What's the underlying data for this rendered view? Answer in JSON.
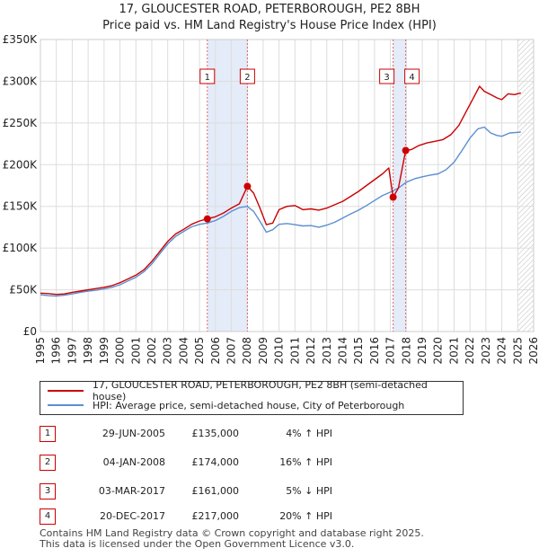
{
  "title_line1": "17, GLOUCESTER ROAD, PETERBOROUGH, PE2 8BH",
  "title_line2": "Price paid vs. HM Land Registry's House Price Index (HPI)",
  "chart_data": {
    "type": "line",
    "title": "17, GLOUCESTER ROAD, PETERBOROUGH, PE2 8BH",
    "subtitle": "Price paid vs. HM Land Registry's House Price Index (HPI)",
    "xlim": [
      1995,
      2026
    ],
    "ylim": [
      0,
      350000
    ],
    "x_ticks": [
      1995,
      1996,
      1997,
      1998,
      1999,
      2000,
      2001,
      2002,
      2003,
      2004,
      2005,
      2006,
      2007,
      2008,
      2009,
      2010,
      2011,
      2012,
      2013,
      2014,
      2015,
      2016,
      2017,
      2018,
      2019,
      2020,
      2021,
      2022,
      2023,
      2024,
      2025,
      2026
    ],
    "y_ticks": [
      0,
      50000,
      100000,
      150000,
      200000,
      250000,
      300000,
      350000
    ],
    "y_tick_labels": [
      "£0",
      "£50K",
      "£100K",
      "£150K",
      "£200K",
      "£250K",
      "£300K",
      "£350K"
    ],
    "grid": true,
    "legend_position": "below",
    "forecast_hatch_from": 2025.0,
    "series": [
      {
        "name": "17, GLOUCESTER ROAD, PETERBOROUGH, PE2 8BH (semi-detached house)",
        "color": "#cc0000",
        "points": [
          [
            1995.0,
            46000
          ],
          [
            1995.5,
            45500
          ],
          [
            1996.0,
            44500
          ],
          [
            1996.5,
            45000
          ],
          [
            1997.0,
            47000
          ],
          [
            1997.5,
            48500
          ],
          [
            1998.0,
            50000
          ],
          [
            1998.5,
            51500
          ],
          [
            1999.0,
            53000
          ],
          [
            1999.5,
            55000
          ],
          [
            2000.0,
            58500
          ],
          [
            2000.5,
            63000
          ],
          [
            2001.0,
            67500
          ],
          [
            2001.5,
            74000
          ],
          [
            2002.0,
            84000
          ],
          [
            2002.5,
            96000
          ],
          [
            2003.0,
            108000
          ],
          [
            2003.5,
            117000
          ],
          [
            2004.0,
            122500
          ],
          [
            2004.5,
            128500
          ],
          [
            2005.0,
            132500
          ],
          [
            2005.49,
            135000
          ],
          [
            2006.0,
            137500
          ],
          [
            2006.5,
            142000
          ],
          [
            2007.0,
            148000
          ],
          [
            2007.5,
            153000
          ],
          [
            2008.01,
            174000
          ],
          [
            2008.4,
            166000
          ],
          [
            2008.8,
            148000
          ],
          [
            2009.2,
            128000
          ],
          [
            2009.6,
            130000
          ],
          [
            2010.0,
            146000
          ],
          [
            2010.5,
            150000
          ],
          [
            2011.0,
            151000
          ],
          [
            2011.5,
            146000
          ],
          [
            2012.0,
            147000
          ],
          [
            2012.5,
            145500
          ],
          [
            2013.0,
            148000
          ],
          [
            2013.5,
            152000
          ],
          [
            2014.0,
            156000
          ],
          [
            2014.5,
            162000
          ],
          [
            2015.0,
            168000
          ],
          [
            2015.5,
            175000
          ],
          [
            2016.0,
            182000
          ],
          [
            2016.5,
            189000
          ],
          [
            2016.9,
            196000
          ],
          [
            2017.17,
            161000
          ],
          [
            2017.5,
            172000
          ],
          [
            2017.96,
            217000
          ],
          [
            2018.3,
            218000
          ],
          [
            2018.8,
            223000
          ],
          [
            2019.3,
            226000
          ],
          [
            2019.8,
            228000
          ],
          [
            2020.3,
            230000
          ],
          [
            2020.8,
            236000
          ],
          [
            2021.3,
            247000
          ],
          [
            2021.8,
            265000
          ],
          [
            2022.3,
            283000
          ],
          [
            2022.6,
            294000
          ],
          [
            2022.9,
            288000
          ],
          [
            2023.3,
            284000
          ],
          [
            2023.7,
            280000
          ],
          [
            2024.0,
            278000
          ],
          [
            2024.4,
            285000
          ],
          [
            2024.8,
            284000
          ],
          [
            2025.2,
            286000
          ]
        ]
      },
      {
        "name": "HPI: Average price, semi-detached house, City of Peterborough",
        "color": "#5b8fd0",
        "points": [
          [
            1995.0,
            44000
          ],
          [
            1995.5,
            43000
          ],
          [
            1996.0,
            42500
          ],
          [
            1996.5,
            43500
          ],
          [
            1997.0,
            45000
          ],
          [
            1997.5,
            47000
          ],
          [
            1998.0,
            48500
          ],
          [
            1998.5,
            49500
          ],
          [
            1999.0,
            51000
          ],
          [
            1999.5,
            53000
          ],
          [
            2000.0,
            56000
          ],
          [
            2000.5,
            60500
          ],
          [
            2001.0,
            65000
          ],
          [
            2001.5,
            71500
          ],
          [
            2002.0,
            81000
          ],
          [
            2002.5,
            93000
          ],
          [
            2003.0,
            105000
          ],
          [
            2003.5,
            114000
          ],
          [
            2004.0,
            120000
          ],
          [
            2004.5,
            125500
          ],
          [
            2005.0,
            128500
          ],
          [
            2005.49,
            130000
          ],
          [
            2006.0,
            133000
          ],
          [
            2006.5,
            138000
          ],
          [
            2007.0,
            144000
          ],
          [
            2007.5,
            148500
          ],
          [
            2008.0,
            150000
          ],
          [
            2008.4,
            144000
          ],
          [
            2008.8,
            132000
          ],
          [
            2009.2,
            119000
          ],
          [
            2009.6,
            122000
          ],
          [
            2010.0,
            128500
          ],
          [
            2010.5,
            129500
          ],
          [
            2011.0,
            128000
          ],
          [
            2011.5,
            126500
          ],
          [
            2012.0,
            127000
          ],
          [
            2012.5,
            125000
          ],
          [
            2013.0,
            127500
          ],
          [
            2013.5,
            131000
          ],
          [
            2014.0,
            136000
          ],
          [
            2014.5,
            141000
          ],
          [
            2015.0,
            145500
          ],
          [
            2015.5,
            151000
          ],
          [
            2016.0,
            157000
          ],
          [
            2016.5,
            163000
          ],
          [
            2017.0,
            167000
          ],
          [
            2017.5,
            172000
          ],
          [
            2018.0,
            179000
          ],
          [
            2018.5,
            183000
          ],
          [
            2019.0,
            185500
          ],
          [
            2019.5,
            187500
          ],
          [
            2020.0,
            189000
          ],
          [
            2020.5,
            194000
          ],
          [
            2021.0,
            203000
          ],
          [
            2021.5,
            217000
          ],
          [
            2022.0,
            232000
          ],
          [
            2022.5,
            243000
          ],
          [
            2022.9,
            245000
          ],
          [
            2023.3,
            238000
          ],
          [
            2023.7,
            235000
          ],
          [
            2024.0,
            234000
          ],
          [
            2024.5,
            238000
          ],
          [
            2025.2,
            239000
          ]
        ]
      }
    ],
    "markers": [
      {
        "label": "1",
        "x": 2005.49,
        "y": 135000
      },
      {
        "label": "2",
        "x": 2008.01,
        "y": 174000
      },
      {
        "label": "3",
        "x": 2017.17,
        "y": 161000
      },
      {
        "label": "4",
        "x": 2017.96,
        "y": 217000
      }
    ],
    "shaded_spans": [
      [
        2005.49,
        2008.01
      ],
      [
        2017.17,
        2017.96
      ]
    ]
  },
  "legend": {
    "items": [
      {
        "label": "17, GLOUCESTER ROAD, PETERBOROUGH, PE2 8BH (semi-detached house)",
        "color": "#cc0000"
      },
      {
        "label": "HPI: Average price, semi-detached house, City of Peterborough",
        "color": "#5b8fd0"
      }
    ]
  },
  "transactions": [
    {
      "num": "1",
      "date": "29-JUN-2005",
      "price": "£135,000",
      "hpi": "4% ↑ HPI"
    },
    {
      "num": "2",
      "date": "04-JAN-2008",
      "price": "£174,000",
      "hpi": "16% ↑ HPI"
    },
    {
      "num": "3",
      "date": "03-MAR-2017",
      "price": "£161,000",
      "hpi": "5% ↓ HPI"
    },
    {
      "num": "4",
      "date": "20-DEC-2017",
      "price": "£217,000",
      "hpi": "20% ↑ HPI"
    }
  ],
  "footer": {
    "line1": "Contains HM Land Registry data © Crown copyright and database right 2025.",
    "line2": "This data is licensed under the Open Government Licence v3.0."
  }
}
